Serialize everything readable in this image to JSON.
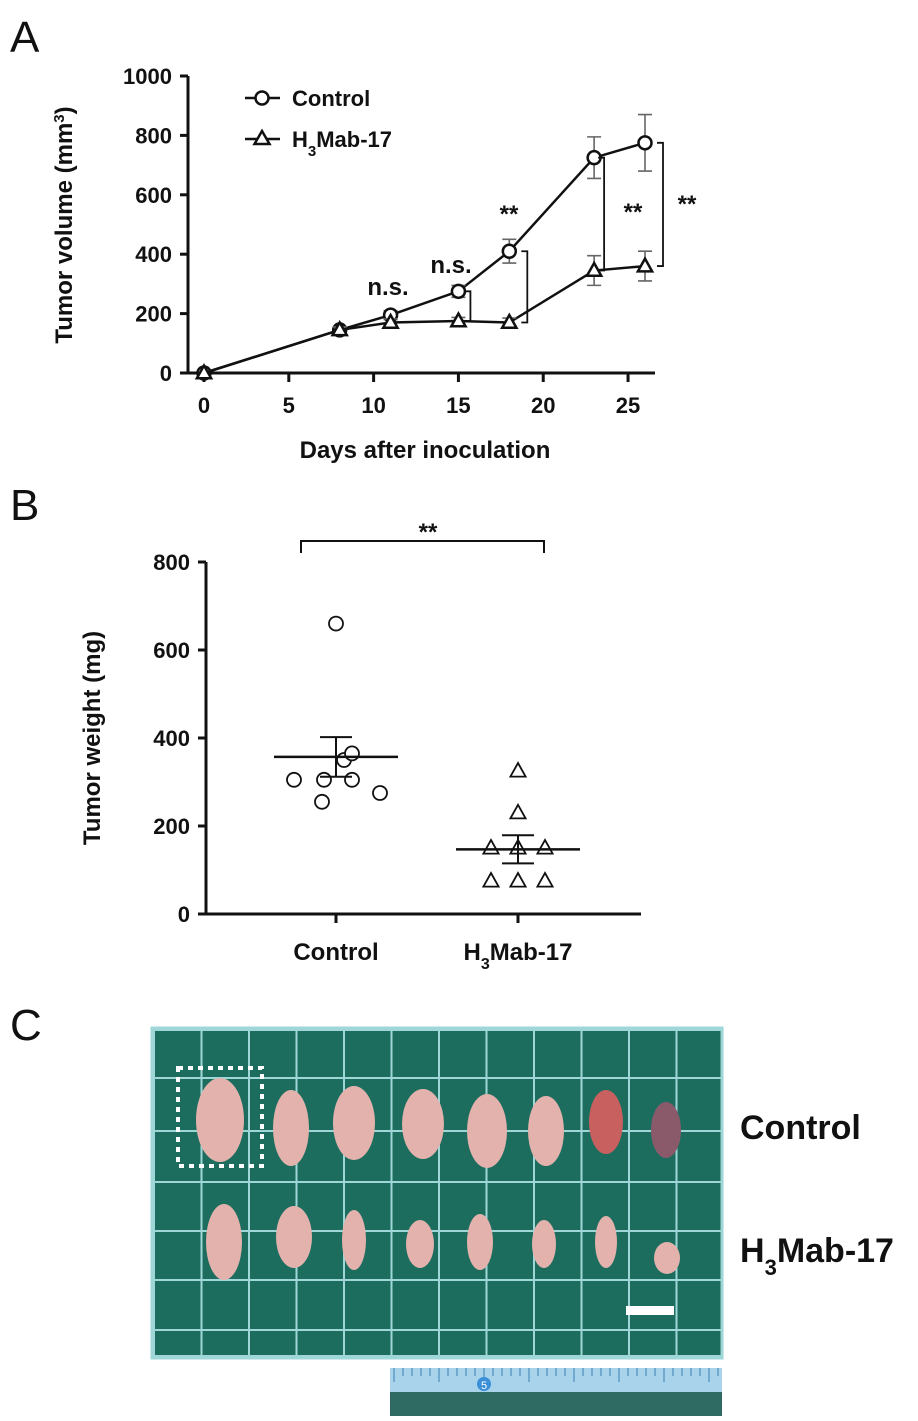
{
  "panels": {
    "a": "A",
    "b": "B",
    "c": "C"
  },
  "chart_data": [
    {
      "type": "line",
      "xlabel": "Days after inoculation",
      "ylabel_main": "Tumor volume (mm",
      "ylabel_sup": "3",
      "ylabel_end": ")",
      "xlim": [
        0,
        26.5
      ],
      "ylim": [
        0,
        1000
      ],
      "xticks": [
        0,
        5,
        10,
        15,
        20,
        25
      ],
      "yticks": [
        0,
        200,
        400,
        600,
        800,
        1000
      ],
      "legend_position": "top-left",
      "series": [
        {
          "name": "Control",
          "marker": "circle",
          "x": [
            0,
            8,
            11,
            15,
            18,
            23,
            26
          ],
          "y": [
            0,
            145,
            195,
            275,
            410,
            725,
            775
          ],
          "err": [
            0,
            10,
            15,
            20,
            40,
            70,
            95
          ]
        },
        {
          "name_main": "H",
          "name_sub": "3",
          "name_end": "Mab-17",
          "marker": "triangle",
          "x": [
            0,
            8,
            11,
            15,
            18,
            23,
            26
          ],
          "y": [
            0,
            145,
            170,
            175,
            170,
            345,
            360
          ],
          "err": [
            0,
            10,
            12,
            12,
            15,
            50,
            50
          ]
        }
      ],
      "annotations": [
        {
          "text": "n.s.",
          "x": 11
        },
        {
          "text": "n.s.",
          "x": 15
        },
        {
          "text": "**",
          "x": 18
        },
        {
          "text": "**",
          "x": 23
        },
        {
          "text": "**",
          "x": 26
        }
      ]
    },
    {
      "type": "scatter",
      "ylabel": "Tumor weight (mg)",
      "ylim": [
        0,
        800
      ],
      "yticks": [
        0,
        200,
        400,
        600,
        800
      ],
      "categories": [
        "Control",
        "H3Mab-17"
      ],
      "category_labels": [
        {
          "main": "Control",
          "sub": "",
          "end": ""
        },
        {
          "main": "H",
          "sub": "3",
          "end": "Mab-17"
        }
      ],
      "groups": [
        {
          "name": "Control",
          "marker": "circle",
          "values": [
            660,
            350,
            365,
            305,
            305,
            305,
            255,
            275
          ],
          "mean": 357,
          "sem": 45
        },
        {
          "name": "H3Mab-17",
          "marker": "triangle",
          "values": [
            325,
            230,
            150,
            150,
            150,
            75,
            75,
            75
          ],
          "mean": 147,
          "sem": 32
        }
      ],
      "significance": "**"
    }
  ],
  "photo": {
    "row_labels": [
      {
        "main": "Control",
        "sub": "",
        "end": ""
      },
      {
        "main": "H",
        "sub": "3",
        "end": "Mab-17"
      }
    ],
    "ruler_mark": "5",
    "mat_color": "#1d6d5f",
    "grid_color": "#9fd6d8",
    "tissue_color": "#e4b2ad"
  }
}
